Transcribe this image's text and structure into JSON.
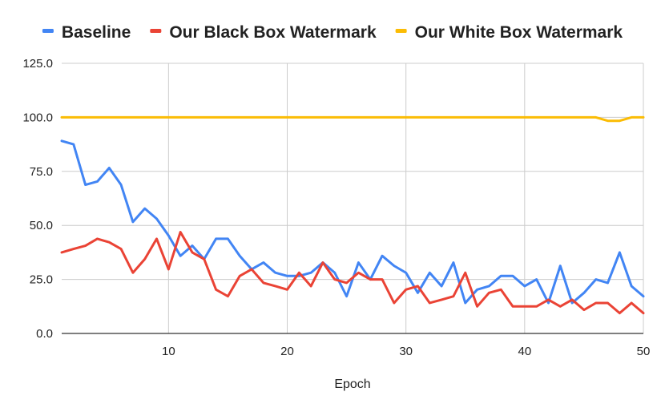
{
  "chart_data": {
    "type": "line",
    "title": "",
    "xlabel": "Epoch",
    "ylabel": "",
    "xlim": [
      1,
      50
    ],
    "ylim": [
      0,
      125
    ],
    "x_ticks": [
      10,
      20,
      30,
      40,
      50
    ],
    "y_ticks": [
      "0.0",
      "25.0",
      "50.0",
      "75.0",
      "100.0",
      "125.0"
    ],
    "grid": true,
    "legend_position": "top",
    "x": [
      1,
      2,
      3,
      4,
      5,
      6,
      7,
      8,
      9,
      10,
      11,
      12,
      13,
      14,
      15,
      16,
      17,
      18,
      19,
      20,
      21,
      22,
      23,
      24,
      25,
      26,
      27,
      28,
      29,
      30,
      31,
      32,
      33,
      34,
      35,
      36,
      37,
      38,
      39,
      40,
      41,
      42,
      43,
      44,
      45,
      46,
      47,
      48,
      49,
      50
    ],
    "series": [
      {
        "name": "Baseline",
        "color": "#4285f4",
        "values": [
          89.1,
          87.5,
          68.8,
          70.3,
          76.6,
          68.8,
          51.6,
          57.8,
          53.1,
          45.3,
          35.9,
          40.6,
          34.4,
          43.8,
          43.8,
          35.9,
          29.7,
          32.8,
          28.1,
          26.6,
          26.6,
          28.1,
          32.8,
          28.1,
          17.2,
          32.8,
          25.0,
          35.9,
          31.3,
          28.1,
          18.8,
          28.1,
          21.9,
          32.8,
          14.1,
          20.3,
          21.9,
          26.6,
          26.6,
          21.9,
          25.0,
          14.1,
          31.3,
          14.1,
          18.8,
          25.0,
          23.4,
          37.5,
          21.9,
          17.2
        ]
      },
      {
        "name": "Our Black Box Watermark",
        "color": "#ea4335",
        "values": [
          37.5,
          39.1,
          40.6,
          43.8,
          42.2,
          39.1,
          28.1,
          34.4,
          43.8,
          29.7,
          46.9,
          37.5,
          34.4,
          20.3,
          17.2,
          26.6,
          29.7,
          23.4,
          21.9,
          20.3,
          28.1,
          21.9,
          32.8,
          25.0,
          23.4,
          28.1,
          25.0,
          25.0,
          14.1,
          20.3,
          21.9,
          14.1,
          15.6,
          17.2,
          28.1,
          12.5,
          18.8,
          20.3,
          12.5,
          12.5,
          12.5,
          15.6,
          12.5,
          15.6,
          10.9,
          14.1,
          14.1,
          9.4,
          14.1,
          9.4
        ]
      },
      {
        "name": "Our White Box Watermark",
        "color": "#fbbc04",
        "values": [
          100,
          100,
          100,
          100,
          100,
          100,
          100,
          100,
          100,
          100,
          100,
          100,
          100,
          100,
          100,
          100,
          100,
          100,
          100,
          100,
          100,
          100,
          100,
          100,
          100,
          100,
          100,
          100,
          100,
          100,
          100,
          100,
          100,
          100,
          100,
          100,
          100,
          100,
          100,
          100,
          100,
          100,
          100,
          100,
          100,
          100,
          98.4,
          98.4,
          100,
          100
        ]
      }
    ]
  }
}
